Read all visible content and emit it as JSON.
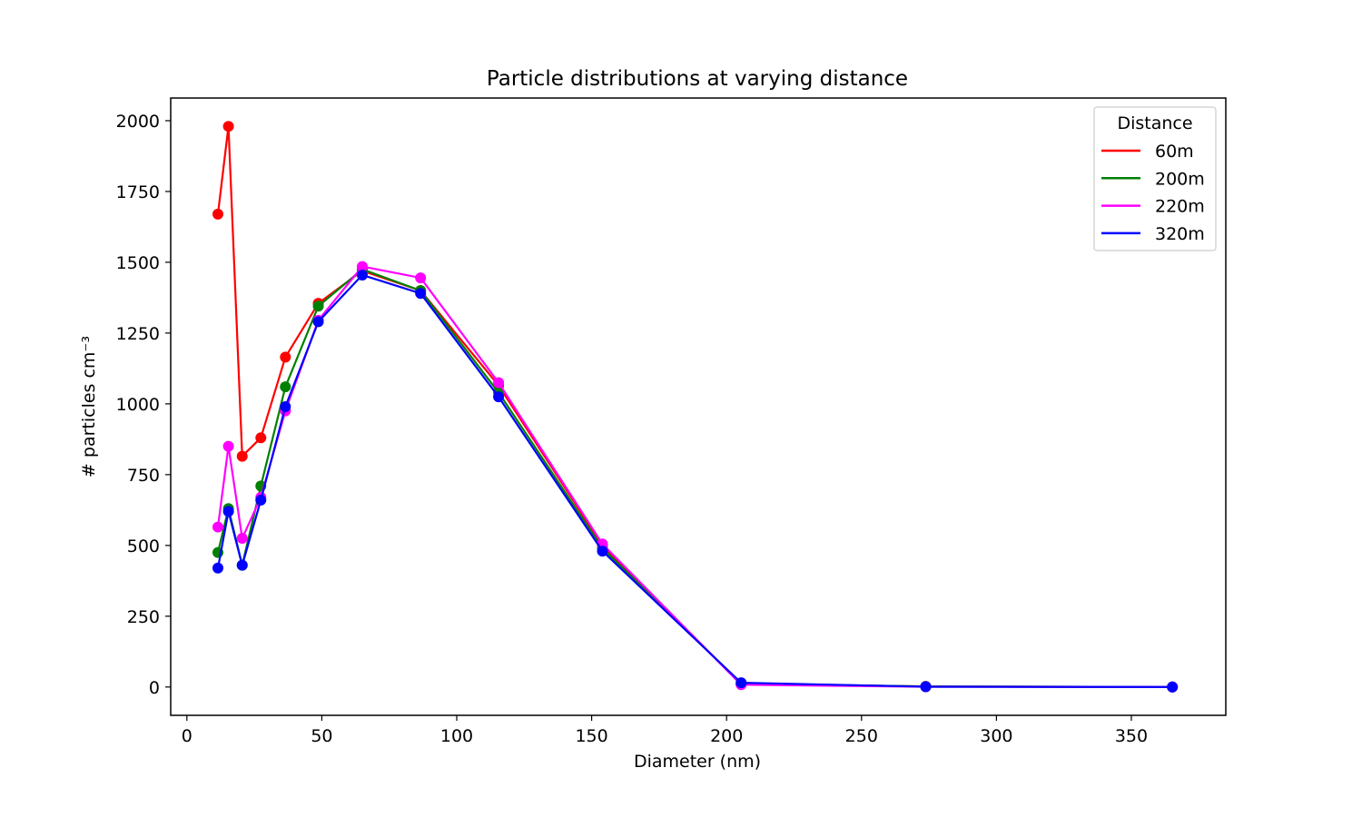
{
  "chart_data": {
    "type": "line",
    "title": "Particle distributions at varying distance",
    "xlabel": "Diameter (nm)",
    "ylabel": "# particles cm⁻³",
    "xlim": [
      -6,
      385
    ],
    "ylim": [
      -100,
      2080
    ],
    "xticks": [
      0,
      50,
      100,
      150,
      200,
      250,
      300,
      350
    ],
    "yticks": [
      0,
      250,
      500,
      750,
      1000,
      1250,
      1500,
      1750,
      2000
    ],
    "grid": false,
    "markers": true,
    "legend": {
      "title": "Distance",
      "placement": "top-right"
    },
    "x": [
      11.5,
      15.4,
      20.5,
      27.4,
      36.5,
      48.7,
      65.0,
      86.6,
      115.5,
      154.0,
      205.4,
      273.8,
      365.2
    ],
    "series": [
      {
        "name": "60m",
        "color": "#ff0000",
        "values": [
          1670,
          1980,
          815,
          880,
          1165,
          1355,
          1470,
          1400,
          1065,
          500,
          10,
          2,
          0
        ]
      },
      {
        "name": "200m",
        "color": "#008000",
        "values": [
          475,
          630,
          430,
          710,
          1060,
          1345,
          1475,
          1400,
          1040,
          490,
          12,
          2,
          0
        ]
      },
      {
        "name": "220m",
        "color": "#ff00ff",
        "values": [
          565,
          850,
          525,
          670,
          975,
          1295,
          1485,
          1445,
          1075,
          505,
          8,
          1,
          0
        ]
      },
      {
        "name": "320m",
        "color": "#0000ff",
        "values": [
          420,
          620,
          430,
          660,
          990,
          1290,
          1455,
          1390,
          1025,
          480,
          15,
          1,
          0
        ]
      }
    ]
  }
}
